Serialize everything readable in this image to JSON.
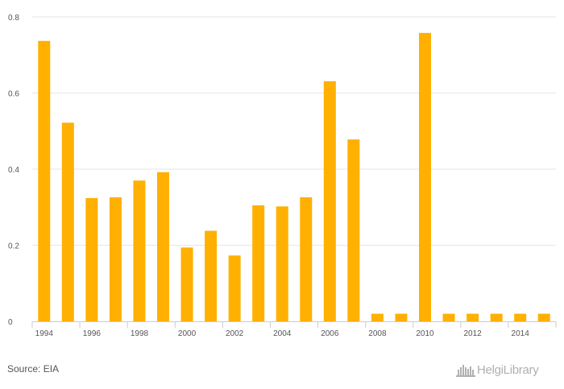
{
  "chart_data": {
    "type": "bar",
    "categories": [
      "1994",
      "1995",
      "1996",
      "1997",
      "1998",
      "1999",
      "2000",
      "2001",
      "2002",
      "2003",
      "2004",
      "2005",
      "2006",
      "2007",
      "2008",
      "2009",
      "2010",
      "2011",
      "2012",
      "2013",
      "2014",
      "2015"
    ],
    "values": [
      0.737,
      0.522,
      0.324,
      0.326,
      0.37,
      0.392,
      0.194,
      0.238,
      0.173,
      0.305,
      0.302,
      0.326,
      0.631,
      0.478,
      0.02,
      0.02,
      0.758,
      0.02,
      0.02,
      0.02,
      0.02,
      0.02
    ],
    "x_tick_labels": [
      "1994",
      "1996",
      "1998",
      "2000",
      "2002",
      "2004",
      "2006",
      "2008",
      "2010",
      "2012",
      "2014"
    ],
    "y_ticks": [
      "0",
      "0.2",
      "0.4",
      "0.6",
      "0.8"
    ],
    "ylim": [
      0,
      0.8
    ],
    "grid": true,
    "bar_color": "#FFB000",
    "title": "",
    "xlabel": "",
    "ylabel": ""
  },
  "footer": {
    "source": "Source: EIA",
    "logo_text": "HelgiLibrary"
  },
  "colors": {
    "grid": "#e6e6e6",
    "axis": "#cccccc",
    "text": "#555555",
    "logo": "#b0b0b0"
  }
}
